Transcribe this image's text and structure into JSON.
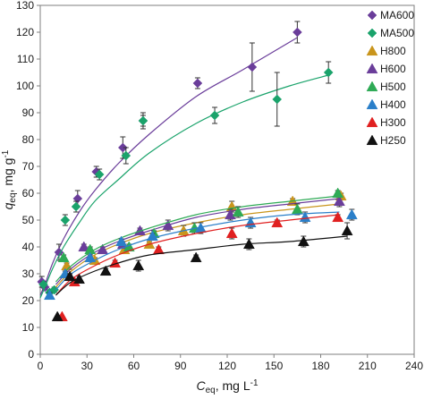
{
  "chart_data": {
    "type": "scatter",
    "xlabel": {
      "main": "C",
      "sub": "eq",
      "rest": ", mg L",
      "sup": "-1"
    },
    "ylabel": {
      "main": "q",
      "sub": "eq",
      "rest": ", mg g",
      "sup": "-1"
    },
    "xlim": [
      0,
      240
    ],
    "ylim": [
      0,
      130
    ],
    "xticks": [
      "0",
      "30",
      "60",
      "90",
      "120",
      "150",
      "180",
      "210",
      "240"
    ],
    "yticks": [
      "0",
      "10",
      "20",
      "30",
      "40",
      "50",
      "60",
      "70",
      "80",
      "90",
      "100",
      "110",
      "120",
      "130"
    ],
    "grid": false,
    "legend_position": "top-right",
    "series": [
      {
        "name": "MA600",
        "marker": "diamond",
        "color": "#6a3d9a",
        "points": [
          [
            1,
            27
          ],
          [
            3,
            25
          ],
          [
            12,
            38
          ],
          [
            24,
            58
          ],
          [
            36,
            68
          ],
          [
            53,
            77
          ],
          [
            66,
            87
          ],
          [
            101,
            101
          ],
          [
            136,
            107
          ],
          [
            165,
            120
          ]
        ],
        "errors": [
          2,
          1,
          3,
          3,
          2,
          4,
          3,
          2,
          9,
          4
        ],
        "curve": [
          [
            0,
            22
          ],
          [
            3,
            26
          ],
          [
            8,
            34
          ],
          [
            15,
            43
          ],
          [
            25,
            53
          ],
          [
            35,
            61
          ],
          [
            50,
            71
          ],
          [
            70,
            82
          ],
          [
            100,
            96
          ],
          [
            130,
            106
          ],
          [
            165,
            118
          ]
        ]
      },
      {
        "name": "MA500",
        "marker": "diamond",
        "color": "#1aa36b",
        "points": [
          [
            2,
            26
          ],
          [
            6,
            23
          ],
          [
            9,
            24
          ],
          [
            16,
            50
          ],
          [
            23,
            55
          ],
          [
            38,
            67
          ],
          [
            55,
            74
          ],
          [
            66,
            87
          ],
          [
            112,
            89
          ],
          [
            152,
            95
          ],
          [
            185,
            105
          ]
        ],
        "errors": [
          1,
          1,
          1,
          2,
          2,
          2,
          3,
          2,
          3,
          10,
          4
        ],
        "curve": [
          [
            0,
            21
          ],
          [
            3,
            25
          ],
          [
            8,
            32
          ],
          [
            15,
            40
          ],
          [
            25,
            49
          ],
          [
            35,
            57
          ],
          [
            50,
            65
          ],
          [
            70,
            75
          ],
          [
            100,
            86
          ],
          [
            130,
            94
          ],
          [
            160,
            100
          ],
          [
            185,
            104
          ]
        ]
      },
      {
        "name": "H800",
        "marker": "triangle",
        "color": "#c9951c",
        "points": [
          [
            17,
            33
          ],
          [
            35,
            35
          ],
          [
            54,
            39
          ],
          [
            70,
            41
          ],
          [
            92,
            46
          ],
          [
            123,
            55
          ],
          [
            162,
            57
          ],
          [
            193,
            59
          ]
        ],
        "errors": [
          1,
          1,
          1,
          1,
          2,
          2,
          1,
          1
        ],
        "curve": [
          [
            10,
            25
          ],
          [
            20,
            31
          ],
          [
            35,
            37
          ],
          [
            50,
            41
          ],
          [
            70,
            45
          ],
          [
            100,
            49
          ],
          [
            130,
            52
          ],
          [
            160,
            54
          ],
          [
            192,
            56
          ]
        ]
      },
      {
        "name": "H600",
        "marker": "triangle",
        "color": "#6a3d9a",
        "points": [
          [
            28,
            40
          ],
          [
            40,
            39
          ],
          [
            53,
            41
          ],
          [
            64,
            46
          ],
          [
            82,
            48
          ],
          [
            122,
            52
          ],
          [
            192,
            57
          ]
        ],
        "errors": [
          1,
          1,
          1,
          1,
          2,
          2,
          2
        ],
        "curve": [
          [
            10,
            26
          ],
          [
            20,
            32
          ],
          [
            35,
            38
          ],
          [
            50,
            42
          ],
          [
            70,
            46
          ],
          [
            100,
            51
          ],
          [
            130,
            54
          ],
          [
            160,
            56
          ],
          [
            192,
            58
          ]
        ]
      },
      {
        "name": "H500",
        "marker": "triangle",
        "color": "#2eaa55",
        "points": [
          [
            15,
            36
          ],
          [
            32,
            39
          ],
          [
            57,
            40
          ],
          [
            73,
            45
          ],
          [
            99,
            47
          ],
          [
            127,
            53
          ],
          [
            165,
            54
          ],
          [
            191,
            60
          ]
        ],
        "errors": [
          1,
          1,
          1,
          1,
          2,
          2,
          2,
          1
        ],
        "curve": [
          [
            10,
            27
          ],
          [
            20,
            33
          ],
          [
            35,
            39
          ],
          [
            50,
            43
          ],
          [
            70,
            47
          ],
          [
            100,
            52
          ],
          [
            130,
            55
          ],
          [
            160,
            57
          ],
          [
            192,
            59
          ]
        ]
      },
      {
        "name": "H400",
        "marker": "triangle",
        "color": "#2a7fc9",
        "points": [
          [
            6,
            22
          ],
          [
            16,
            30
          ],
          [
            32,
            36
          ],
          [
            52,
            42
          ],
          [
            72,
            44
          ],
          [
            103,
            47
          ],
          [
            135,
            49
          ],
          [
            170,
            51
          ],
          [
            200,
            52
          ]
        ],
        "errors": [
          1,
          1,
          1,
          1,
          1,
          2,
          2,
          2,
          2
        ],
        "curve": [
          [
            10,
            24
          ],
          [
            20,
            30
          ],
          [
            35,
            35
          ],
          [
            50,
            39
          ],
          [
            70,
            43
          ],
          [
            100,
            47
          ],
          [
            130,
            50
          ],
          [
            160,
            52
          ],
          [
            192,
            53
          ]
        ]
      },
      {
        "name": "H300",
        "marker": "triangle",
        "color": "#e02020",
        "points": [
          [
            14,
            14
          ],
          [
            22,
            27
          ],
          [
            48,
            34
          ],
          [
            76,
            39
          ],
          [
            123,
            45
          ],
          [
            152,
            49
          ],
          [
            191,
            51
          ]
        ],
        "errors": [
          0,
          1,
          1,
          1,
          2,
          1,
          1
        ],
        "curve": [
          [
            10,
            22
          ],
          [
            20,
            28
          ],
          [
            35,
            33
          ],
          [
            50,
            37
          ],
          [
            70,
            41
          ],
          [
            100,
            45
          ],
          [
            130,
            48
          ],
          [
            160,
            50
          ],
          [
            192,
            52
          ]
        ]
      },
      {
        "name": "H250",
        "marker": "triangle",
        "color": "#111111",
        "points": [
          [
            11,
            14
          ],
          [
            19,
            29
          ],
          [
            25,
            28
          ],
          [
            42,
            31
          ],
          [
            63,
            33
          ],
          [
            100,
            36
          ],
          [
            134,
            41
          ],
          [
            169,
            42
          ],
          [
            197,
            46
          ]
        ],
        "errors": [
          0,
          1,
          1,
          1,
          2,
          1,
          2,
          2,
          3
        ],
        "curve": [
          [
            10,
            22
          ],
          [
            20,
            27
          ],
          [
            35,
            31
          ],
          [
            50,
            34
          ],
          [
            70,
            37
          ],
          [
            100,
            39
          ],
          [
            130,
            41
          ],
          [
            160,
            42
          ],
          [
            197,
            44
          ]
        ]
      }
    ]
  }
}
